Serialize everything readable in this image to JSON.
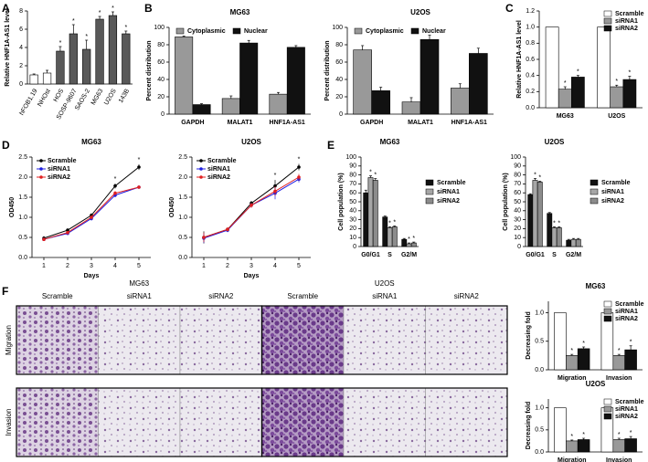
{
  "chart_data": [
    {
      "type": "bar",
      "panel": "A",
      "ylabel": "Relative HNF1A-AS1 level",
      "categories": [
        "hFOB1.19",
        "NHOst",
        "HOS",
        "SOSP-9607",
        "SAOS-2",
        "MG63",
        "U2OS",
        "143B"
      ],
      "values": [
        1,
        1.2,
        3.6,
        5.5,
        3.8,
        7.1,
        7.5,
        5.5
      ],
      "errors": [
        0.1,
        0.3,
        0.5,
        1.0,
        1.0,
        0.3,
        0.4,
        0.3
      ],
      "annotations": [
        null,
        null,
        "*",
        "*",
        "*",
        "*",
        "*",
        "*"
      ],
      "colors": [
        "#ffffff",
        "#ffffff",
        "#595959",
        "#595959",
        "#595959",
        "#595959",
        "#595959",
        "#595959"
      ],
      "ylim": [
        0,
        8
      ],
      "yticks": [
        0,
        2,
        4,
        6,
        8
      ]
    },
    {
      "type": "bar",
      "panel": "B",
      "title": "MG63",
      "ylabel": "Percent distribution",
      "categories": [
        "GAPDH",
        "MALAT1",
        "HNF1A-AS1"
      ],
      "series": [
        {
          "name": "Cytoplasmic",
          "color": "#999999",
          "values": [
            89,
            18,
            23
          ],
          "errors": [
            1,
            3,
            2
          ]
        },
        {
          "name": "Nuclear",
          "color": "#111111",
          "values": [
            11,
            82,
            77
          ],
          "errors": [
            1,
            3,
            2
          ]
        }
      ],
      "ylim": [
        0,
        100
      ],
      "yticks": [
        0,
        20,
        40,
        60,
        80,
        100
      ],
      "legend": "upper center"
    },
    {
      "type": "bar",
      "title": "U2OS",
      "ylabel": "Percent distribution",
      "categories": [
        "GAPDH",
        "MALAT1",
        "HNF1A-AS1"
      ],
      "series": [
        {
          "name": "Cytoplasmic",
          "color": "#999999",
          "values": [
            74,
            14,
            30
          ],
          "errors": [
            5,
            5,
            5
          ]
        },
        {
          "name": "Nuclear",
          "color": "#111111",
          "values": [
            27,
            86,
            70
          ],
          "errors": [
            4,
            5,
            6
          ]
        }
      ],
      "ylim": [
        0,
        100
      ],
      "yticks": [
        0,
        20,
        40,
        60,
        80,
        100
      ],
      "legend": "upper center"
    },
    {
      "type": "bar",
      "panel": "C",
      "ylabel": "Relative HNF1A-AS1 level",
      "categories": [
        "MG63",
        "U2OS"
      ],
      "series": [
        {
          "name": "Scramble",
          "color": "#ffffff",
          "values": [
            1,
            1
          ]
        },
        {
          "name": "siRNA1",
          "color": "#999999",
          "values": [
            0.23,
            0.26
          ],
          "errors": [
            0.03,
            0.02
          ],
          "annotations": [
            "*",
            "*"
          ]
        },
        {
          "name": "siRNA2",
          "color": "#111111",
          "values": [
            0.38,
            0.35
          ],
          "errors": [
            0.02,
            0.04
          ],
          "annotations": [
            "*",
            "*"
          ]
        }
      ],
      "ylim": [
        0,
        1.2
      ],
      "yticks": [
        {
          "value": 0,
          "label": "0.0"
        },
        0.2,
        0.4,
        0.6,
        0.8,
        {
          "value": 1,
          "label": "1.0"
        },
        1.2
      ],
      "legend": "upper right"
    },
    {
      "type": "line",
      "panel": "D",
      "title": "MG63",
      "xlabel": "Days",
      "ylabel": "OD450",
      "x": [
        1,
        2,
        3,
        4,
        5
      ],
      "series": [
        {
          "name": "Scramble",
          "color": "#000000",
          "values": [
            0.48,
            0.68,
            1.05,
            1.78,
            2.25
          ],
          "errors": [
            0.05,
            0.04,
            0.05,
            0.06,
            0.07
          ]
        },
        {
          "name": "siRNA1",
          "color": "#1f1fe0",
          "values": [
            0.45,
            0.6,
            0.97,
            1.55,
            1.75
          ],
          "errors": [
            0.04,
            0.04,
            0.05,
            0.05,
            0.04
          ]
        },
        {
          "name": "siRNA2",
          "color": "#e02020",
          "values": [
            0.45,
            0.62,
            1.0,
            1.6,
            1.75
          ],
          "errors": [
            0.04,
            0.04,
            0.05,
            0.05,
            0.04
          ]
        }
      ],
      "annotations": [
        null,
        null,
        null,
        "*",
        "*"
      ],
      "xlim": [
        0.5,
        5.5
      ],
      "xticks": [
        1,
        2,
        3,
        4,
        5
      ],
      "ylim": [
        0,
        2.5
      ],
      "yticks": [
        {
          "value": 0,
          "label": "0.0"
        },
        0.5,
        {
          "value": 1,
          "label": "1.0"
        },
        1.5,
        {
          "value": 2,
          "label": "2.0"
        },
        2.5
      ],
      "legend": "upper left"
    },
    {
      "type": "line",
      "title": "U2OS",
      "xlabel": "Days",
      "ylabel": "OD450",
      "x": [
        1,
        2,
        3,
        4,
        5
      ],
      "series": [
        {
          "name": "Scramble",
          "color": "#000000",
          "values": [
            0.5,
            0.7,
            1.35,
            1.78,
            2.25
          ],
          "errors": [
            0.15,
            0.05,
            0.06,
            0.15,
            0.08
          ]
        },
        {
          "name": "siRNA1",
          "color": "#1f1fe0",
          "values": [
            0.48,
            0.68,
            1.3,
            1.6,
            1.95
          ],
          "errors": [
            0.12,
            0.05,
            0.06,
            0.15,
            0.08
          ]
        },
        {
          "name": "siRNA2",
          "color": "#e02020",
          "values": [
            0.5,
            0.7,
            1.3,
            1.65,
            2.0
          ],
          "errors": [
            0.12,
            0.05,
            0.06,
            0.12,
            0.08
          ]
        }
      ],
      "annotations": [
        null,
        null,
        null,
        "*",
        "*"
      ],
      "xlim": [
        0.5,
        5.5
      ],
      "xticks": [
        1,
        2,
        3,
        4,
        5
      ],
      "ylim": [
        0,
        2.5
      ],
      "yticks": [
        {
          "value": 0,
          "label": "0.0"
        },
        0.5,
        {
          "value": 1,
          "label": "1.0"
        },
        1.5,
        {
          "value": 2,
          "label": "2.0"
        },
        2.5
      ],
      "legend": "upper left"
    },
    {
      "type": "bar",
      "panel": "E",
      "title": "MG63",
      "ylabel": "Cell population (%)",
      "categories": [
        "G0/G1",
        "S",
        "G2/M"
      ],
      "series": [
        {
          "name": "Scramble",
          "color": "#111111",
          "values": [
            60,
            33,
            8
          ],
          "errors": [
            3,
            1,
            1
          ]
        },
        {
          "name": "siRNA1",
          "color": "#a6a6a6",
          "values": [
            77,
            21,
            3
          ],
          "errors": [
            2,
            1,
            1
          ],
          "annotations": [
            "*",
            "*",
            "*"
          ]
        },
        {
          "name": "siRNA2",
          "color": "#8c8c8c",
          "values": [
            74,
            22,
            4
          ],
          "errors": [
            2,
            1,
            1
          ],
          "annotations": [
            "*",
            "*",
            "*"
          ]
        }
      ],
      "ylim": [
        0,
        100
      ],
      "yticks": [
        0,
        10,
        20,
        30,
        40,
        50,
        60,
        70,
        80,
        90,
        100
      ],
      "legend": "right"
    },
    {
      "type": "bar",
      "title": "U2OS",
      "ylabel": "Cell population (%)",
      "categories": [
        "G0/G1",
        "S",
        "G2/M"
      ],
      "series": [
        {
          "name": "Scramble",
          "color": "#111111",
          "values": [
            58,
            37,
            7
          ],
          "errors": [
            1,
            1,
            1
          ]
        },
        {
          "name": "siRNA1",
          "color": "#a6a6a6",
          "values": [
            74,
            21,
            8
          ],
          "errors": [
            2,
            1,
            1
          ],
          "annotations": [
            "*",
            "*",
            null
          ]
        },
        {
          "name": "siRNA2",
          "color": "#8c8c8c",
          "values": [
            72,
            21,
            8
          ],
          "errors": [
            1,
            1,
            1
          ],
          "annotations": [
            "*",
            "*",
            null
          ]
        }
      ],
      "ylim": [
        0,
        100
      ],
      "yticks": [
        0,
        10,
        20,
        30,
        40,
        50,
        60,
        70,
        80,
        90,
        100
      ],
      "legend": "right"
    },
    {
      "type": "bar",
      "title": "MG63",
      "ylabel": "Decreasing fold",
      "categories": [
        "Migration",
        "Invasion"
      ],
      "series": [
        {
          "name": "Scramble",
          "color": "#ffffff",
          "values": [
            1,
            1
          ]
        },
        {
          "name": "siRNA1",
          "color": "#999999",
          "values": [
            0.25,
            0.25
          ],
          "errors": [
            0.02,
            0.02
          ],
          "annotations": [
            "*",
            "*"
          ]
        },
        {
          "name": "siRNA2",
          "color": "#111111",
          "values": [
            0.37,
            0.35
          ],
          "errors": [
            0.03,
            0.07
          ],
          "annotations": [
            "*",
            "*"
          ]
        }
      ],
      "ylim": [
        0,
        1.2
      ],
      "yticks": [
        {
          "value": 0,
          "label": "0.0"
        },
        0.5,
        {
          "value": 1,
          "label": "1.0"
        }
      ],
      "legend": "upper right"
    },
    {
      "type": "bar",
      "title": "U2OS",
      "ylabel": "Decreasing fold",
      "categories": [
        "Migration",
        "Invasion"
      ],
      "series": [
        {
          "name": "Scramble",
          "color": "#ffffff",
          "values": [
            1,
            1
          ]
        },
        {
          "name": "siRNA1",
          "color": "#999999",
          "values": [
            0.25,
            0.28
          ],
          "errors": [
            0.02,
            0.03
          ],
          "annotations": [
            "*",
            "*"
          ]
        },
        {
          "name": "siRNA2",
          "color": "#111111",
          "values": [
            0.28,
            0.3
          ],
          "errors": [
            0.03,
            0.05
          ],
          "annotations": [
            "*",
            "*"
          ]
        }
      ],
      "ylim": [
        0,
        1.2
      ],
      "yticks": [
        {
          "value": 0,
          "label": "0.0"
        },
        0.5,
        {
          "value": 1,
          "label": "1.0"
        }
      ],
      "legend": "upper right"
    }
  ],
  "micrographs": {
    "panel": "F",
    "cell_lines": [
      "MG63",
      "U2OS"
    ],
    "conditions": [
      "Scramble",
      "siRNA1",
      "siRNA2",
      "Scramble",
      "siRNA1",
      "siRNA2"
    ],
    "assays": [
      "Migration",
      "Invasion"
    ]
  }
}
